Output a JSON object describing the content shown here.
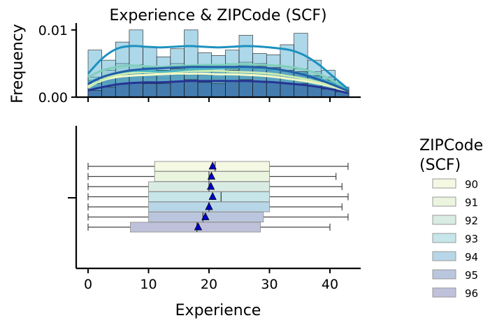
{
  "chart_data": {
    "title": "Experience & ZIPCode (SCF)",
    "xlabel": "Experience",
    "ylabel": "Frequency",
    "xlim": [
      -2,
      45
    ],
    "x_ticks": [
      "0",
      "10",
      "20",
      "30",
      "40"
    ],
    "hist": {
      "type": "histogram-kde",
      "ylim": [
        0,
        0.0105
      ],
      "y_ticks": [
        "0.00",
        "0.01"
      ],
      "bin_width": 2.27,
      "n_bins": 19,
      "series": [
        {
          "name": "90",
          "heights": [
            0.0015,
            0.0025,
            0.003,
            0.0032,
            0.003,
            0.0028,
            0.0033,
            0.0035,
            0.0034,
            0.0033,
            0.0035,
            0.0036,
            0.0034,
            0.0032,
            0.003,
            0.0028,
            0.0026,
            0.0022,
            0.001
          ],
          "kde": [
            0.0016,
            0.0025,
            0.003,
            0.0032,
            0.0033,
            0.0034,
            0.0035,
            0.0035,
            0.0035,
            0.0034,
            0.0034,
            0.0033,
            0.0032,
            0.003,
            0.0027,
            0.0024,
            0.002,
            0.0015,
            0.0008
          ]
        },
        {
          "name": "91",
          "heights": [
            0.0012,
            0.0022,
            0.0035,
            0.0036,
            0.003,
            0.002,
            0.0038,
            0.0035,
            0.0033,
            0.0028,
            0.004,
            0.0038,
            0.0036,
            0.0035,
            0.0034,
            0.0032,
            0.0026,
            0.002,
            0.001
          ],
          "kde": [
            0.0014,
            0.0026,
            0.0033,
            0.0036,
            0.0037,
            0.0037,
            0.0038,
            0.0039,
            0.0039,
            0.0039,
            0.0038,
            0.0037,
            0.0036,
            0.0034,
            0.0031,
            0.0027,
            0.0022,
            0.0016,
            0.0009
          ]
        },
        {
          "name": "92",
          "heights": [
            0.003,
            0.004,
            0.005,
            0.0048,
            0.0045,
            0.004,
            0.005,
            0.0048,
            0.0046,
            0.0045,
            0.005,
            0.0052,
            0.005,
            0.0048,
            0.0045,
            0.0042,
            0.0038,
            0.003,
            0.0015
          ],
          "kde": [
            0.003,
            0.004,
            0.0045,
            0.0047,
            0.0046,
            0.0045,
            0.0046,
            0.0047,
            0.0048,
            0.0048,
            0.0049,
            0.0049,
            0.0048,
            0.0047,
            0.0045,
            0.0041,
            0.0034,
            0.0024,
            0.0012
          ]
        },
        {
          "name": "93",
          "heights": [
            0.0025,
            0.003,
            0.0035,
            0.004,
            0.0038,
            0.0035,
            0.004,
            0.0042,
            0.004,
            0.0038,
            0.0042,
            0.0044,
            0.0042,
            0.004,
            0.0038,
            0.0036,
            0.0032,
            0.0026,
            0.0012
          ],
          "kde": [
            0.0022,
            0.003,
            0.0036,
            0.0039,
            0.0039,
            0.0038,
            0.0039,
            0.0041,
            0.0042,
            0.0043,
            0.0044,
            0.0044,
            0.0043,
            0.0041,
            0.0038,
            0.0034,
            0.0028,
            0.002,
            0.001
          ]
        },
        {
          "name": "94",
          "heights": [
            0.007,
            0.0055,
            0.0082,
            0.01,
            0.0075,
            0.006,
            0.0072,
            0.01,
            0.0066,
            0.0062,
            0.007,
            0.0092,
            0.0065,
            0.0063,
            0.0078,
            0.0095,
            0.0055,
            0.004,
            0.001
          ],
          "kde": [
            0.0035,
            0.0058,
            0.0072,
            0.0076,
            0.0075,
            0.0074,
            0.0075,
            0.0076,
            0.0075,
            0.0074,
            0.0075,
            0.0076,
            0.0075,
            0.0073,
            0.007,
            0.0062,
            0.0048,
            0.003,
            0.0012
          ]
        },
        {
          "name": "95",
          "heights": [
            0.002,
            0.003,
            0.0035,
            0.004,
            0.0045,
            0.004,
            0.0042,
            0.0045,
            0.0044,
            0.0038,
            0.004,
            0.0048,
            0.0046,
            0.0044,
            0.004,
            0.0038,
            0.0032,
            0.0025,
            0.001
          ],
          "kde": [
            0.002,
            0.003,
            0.0036,
            0.004,
            0.0042,
            0.0043,
            0.0044,
            0.0045,
            0.0045,
            0.0045,
            0.0045,
            0.0045,
            0.0044,
            0.0042,
            0.0038,
            0.0033,
            0.0026,
            0.0018,
            0.0009
          ]
        },
        {
          "name": "96",
          "heights": [
            0.001,
            0.0015,
            0.002,
            0.0022,
            0.002,
            0.002,
            0.0024,
            0.0026,
            0.0022,
            0.002,
            0.0024,
            0.0026,
            0.0024,
            0.0022,
            0.002,
            0.002,
            0.0016,
            0.0012,
            0.0008
          ],
          "kde": [
            0.001,
            0.0015,
            0.0019,
            0.0021,
            0.0022,
            0.0022,
            0.0023,
            0.0024,
            0.0024,
            0.0024,
            0.0024,
            0.0024,
            0.0023,
            0.0022,
            0.002,
            0.0018,
            0.0015,
            0.0011,
            0.0006
          ]
        }
      ]
    },
    "box": {
      "type": "boxplot",
      "series": [
        {
          "name": "90",
          "min": 0,
          "q1": 11,
          "median": 21,
          "q3": 30,
          "max": 43,
          "mean": 20.6
        },
        {
          "name": "91",
          "min": 0,
          "q1": 11,
          "median": 20,
          "q3": 30,
          "max": 41,
          "mean": 20.4
        },
        {
          "name": "92",
          "min": 0,
          "q1": 10,
          "median": 20,
          "q3": 30,
          "max": 42,
          "mean": 20.3
        },
        {
          "name": "93",
          "min": 0,
          "q1": 10,
          "median": 22,
          "q3": 30,
          "max": 43,
          "mean": 20.6
        },
        {
          "name": "94",
          "min": 0,
          "q1": 10,
          "median": 20,
          "q3": 30,
          "max": 42,
          "mean": 20.0
        },
        {
          "name": "95",
          "min": 0,
          "q1": 10,
          "median": 19,
          "q3": 29,
          "max": 43,
          "mean": 19.4
        },
        {
          "name": "96",
          "min": 0,
          "q1": 7,
          "median": 18,
          "q3": 28.5,
          "max": 40,
          "mean": 18.2
        }
      ]
    },
    "legend": {
      "title_line1": "ZIPCode",
      "title_line2": "(SCF)",
      "placement": "right",
      "entries": [
        "90",
        "91",
        "92",
        "93",
        "94",
        "95",
        "96"
      ]
    },
    "colors": {
      "box": [
        "#f5f8e2",
        "#ebf5de",
        "#d9ece4",
        "#c6e6ea",
        "#b7d7e8",
        "#bac6de",
        "#bfc0da"
      ],
      "hist": [
        "#eef6b8",
        "#d7eebb",
        "#b0dcc4",
        "#7ecbc9",
        "#4aa9cf",
        "#2c79b5",
        "#2a4d9a"
      ],
      "kde": [
        "#f4f9c6",
        "#c8ecb4",
        "#80cfbb",
        "#4bb6c4",
        "#1d91c0",
        "#225ea8",
        "#253494"
      ],
      "mean_marker": "#0000cc"
    }
  }
}
